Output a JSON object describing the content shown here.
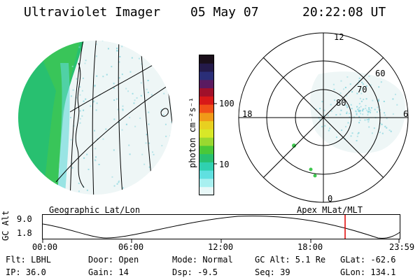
{
  "header": {
    "instrument": "Ultraviolet Imager",
    "date": "05 May 07",
    "time": "20:22:08 UT"
  },
  "geo_panel": {
    "caption": "Geographic Lat/Lon"
  },
  "polar_panel": {
    "caption": "Apex MLat/MLT",
    "mlt_labels": [
      "12",
      "18",
      "6",
      "0"
    ],
    "lat_labels": [
      "60",
      "70",
      "80"
    ]
  },
  "colorbar": {
    "unit_label": "photon cm⁻²s⁻¹",
    "tick_labels": [
      "100",
      "10"
    ],
    "colors": [
      "#1a0f1a",
      "#241a4a",
      "#2a2e78",
      "#5a1a60",
      "#a0102a",
      "#d81818",
      "#f05018",
      "#f09a18",
      "#e8d020",
      "#d8e828",
      "#9ad830",
      "#4ac838",
      "#28c070",
      "#30d0b0",
      "#60e0e0",
      "#a8f0f0",
      "#e8f8f8"
    ]
  },
  "altitude_plot": {
    "ylabel": "GC Alt",
    "ytick_top": "9.0",
    "ytick_bottom": "1.8",
    "x_ticks": [
      "00:00",
      "06:00",
      "12:00",
      "18:00",
      "23:59"
    ],
    "current_marker_color": "#e00000"
  },
  "info": {
    "filter": "Flt: LBHL",
    "door": "Door: Open",
    "mode": "Mode: Normal",
    "gc_alt": "GC Alt: 5.1 Re",
    "glat": "GLat: -62.6",
    "ip": "IP: 36.0",
    "gain": "Gain: 14",
    "dsp": "Dsp:   -9.5",
    "seq": "Seq: 39",
    "glon": "GLon: 134.1"
  }
}
